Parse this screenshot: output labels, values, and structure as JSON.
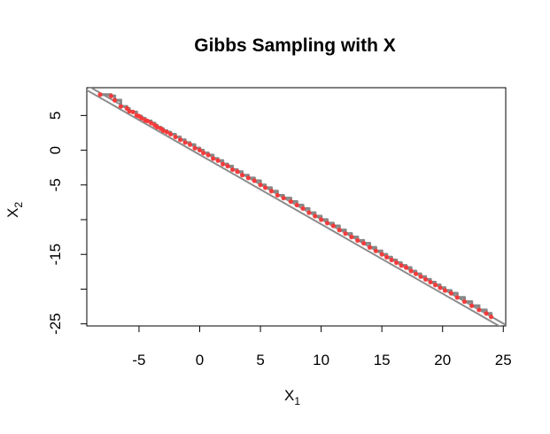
{
  "chart_data": {
    "type": "scatter",
    "title": "Gibbs Sampling with X",
    "xlabel": {
      "main": "X",
      "subscript": "1"
    },
    "ylabel": {
      "main": "X",
      "subscript": "2"
    },
    "xlim": [
      -9.3,
      25.2
    ],
    "ylim": [
      -25.3,
      9.0
    ],
    "x_ticks": [
      -5,
      0,
      5,
      10,
      15,
      20,
      25
    ],
    "x_tick_labels": [
      "-5",
      "0",
      "5",
      "10",
      "15",
      "20",
      "25"
    ],
    "y_ticks": [
      -25,
      -20,
      -15,
      -10,
      -5,
      0,
      5
    ],
    "y_tick_labels": [
      "-25",
      "",
      "-15",
      "",
      "-5",
      "0",
      "5"
    ],
    "grid": false,
    "reference_lines": [
      {
        "name": "",
        "x": [
          -9.5,
          25.5
        ],
        "y": [
          9.55,
          -25.45
        ],
        "color": "#8c8c8c"
      },
      {
        "name": "",
        "x": [
          -9.5,
          25.5
        ],
        "y": [
          8.85,
          -26.15
        ],
        "color": "#8c8c8c"
      }
    ],
    "series": [
      {
        "name": "",
        "color": "#ff3333",
        "trace_color": "#888888",
        "points": [
          [
            -8.2,
            8.0
          ],
          [
            -7.3,
            7.8
          ],
          [
            -7.0,
            7.2
          ],
          [
            -6.5,
            6.3
          ],
          [
            -6.0,
            6.0
          ],
          [
            -5.8,
            5.6
          ],
          [
            -5.5,
            5.5
          ],
          [
            -5.2,
            5.0
          ],
          [
            -5.0,
            4.9
          ],
          [
            -4.8,
            4.6
          ],
          [
            -4.5,
            4.3
          ],
          [
            -4.3,
            4.2
          ],
          [
            -4.0,
            3.9
          ],
          [
            -3.7,
            3.6
          ],
          [
            -3.5,
            3.3
          ],
          [
            -3.2,
            3.1
          ],
          [
            -3.0,
            2.8
          ],
          [
            -2.7,
            2.6
          ],
          [
            -2.4,
            2.3
          ],
          [
            -2.0,
            1.9
          ],
          [
            -1.6,
            1.5
          ],
          [
            -1.2,
            1.1
          ],
          [
            -0.8,
            0.8
          ],
          [
            -0.4,
            0.3
          ],
          [
            0.0,
            0.0
          ],
          [
            0.3,
            -0.4
          ],
          [
            0.7,
            -0.7
          ],
          [
            1.1,
            -1.2
          ],
          [
            1.5,
            -1.5
          ],
          [
            1.9,
            -2.0
          ],
          [
            2.3,
            -2.3
          ],
          [
            2.7,
            -2.8
          ],
          [
            3.1,
            -3.1
          ],
          [
            3.5,
            -3.6
          ],
          [
            4.0,
            -4.0
          ],
          [
            4.5,
            -4.4
          ],
          [
            5.0,
            -5.0
          ],
          [
            5.4,
            -5.4
          ],
          [
            5.9,
            -5.9
          ],
          [
            6.4,
            -6.5
          ],
          [
            6.9,
            -6.9
          ],
          [
            7.5,
            -7.4
          ],
          [
            8.0,
            -7.9
          ],
          [
            8.5,
            -8.4
          ],
          [
            9.0,
            -9.0
          ],
          [
            9.5,
            -9.5
          ],
          [
            10.0,
            -10.0
          ],
          [
            10.5,
            -10.5
          ],
          [
            11.0,
            -10.9
          ],
          [
            11.5,
            -11.5
          ],
          [
            12.0,
            -12.0
          ],
          [
            12.5,
            -12.5
          ],
          [
            13.0,
            -13.0
          ],
          [
            13.5,
            -13.4
          ],
          [
            14.0,
            -14.0
          ],
          [
            14.5,
            -14.5
          ],
          [
            15.0,
            -15.0
          ],
          [
            15.4,
            -15.4
          ],
          [
            15.8,
            -15.8
          ],
          [
            16.2,
            -16.2
          ],
          [
            16.6,
            -16.6
          ],
          [
            17.0,
            -16.9
          ],
          [
            17.4,
            -17.4
          ],
          [
            17.8,
            -17.8
          ],
          [
            18.2,
            -18.2
          ],
          [
            18.6,
            -18.6
          ],
          [
            19.0,
            -19.0
          ],
          [
            19.4,
            -19.4
          ],
          [
            19.8,
            -19.8
          ],
          [
            20.2,
            -20.2
          ],
          [
            20.7,
            -20.6
          ],
          [
            21.2,
            -21.2
          ],
          [
            21.8,
            -21.8
          ],
          [
            22.4,
            -22.4
          ],
          [
            23.0,
            -23.0
          ],
          [
            23.6,
            -23.5
          ],
          [
            24.0,
            -24.0
          ]
        ]
      }
    ]
  }
}
